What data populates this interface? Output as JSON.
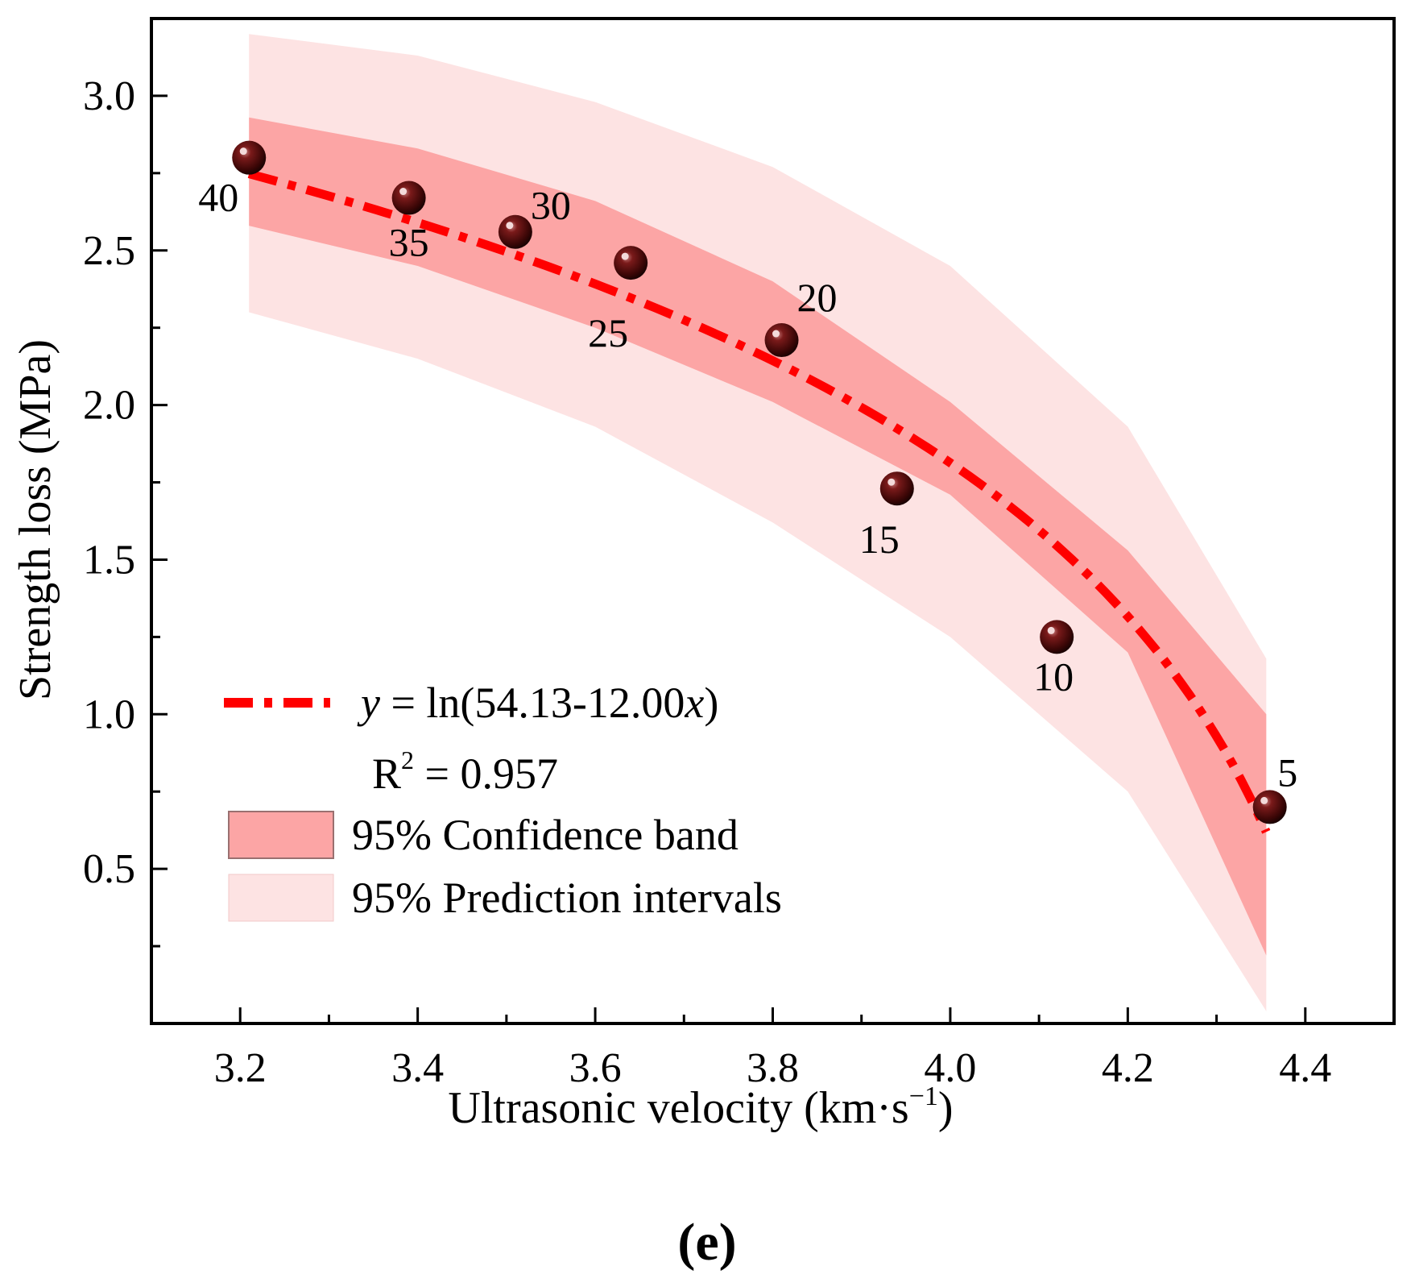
{
  "chart_data": {
    "type": "scatter",
    "x": [
      3.21,
      3.39,
      3.51,
      3.64,
      3.81,
      3.94,
      4.12,
      4.36
    ],
    "y": [
      2.8,
      2.67,
      2.56,
      2.46,
      2.21,
      1.73,
      1.25,
      0.7
    ],
    "point_labels": [
      "40",
      "35",
      "30",
      "25",
      "20",
      "15",
      "10",
      "5"
    ],
    "fit": {
      "name": "y = ln(54.13-12.00x)",
      "equation_y": "y",
      "equation_mid": " = ln(54.13-12.00",
      "equation_x": "x",
      "equation_end": ")",
      "a": 54.13,
      "b": 12.0,
      "x_range": [
        3.21,
        4.356
      ],
      "r2_prefix": "R",
      "r2_sup": "2",
      "r2_value": " = 0.957"
    },
    "confidence_band": {
      "name": "95% Confidence band",
      "x": [
        3.21,
        3.4,
        3.6,
        3.8,
        4.0,
        4.2,
        4.356
      ],
      "lower": [
        2.58,
        2.45,
        2.25,
        2.01,
        1.71,
        1.2,
        0.22
      ],
      "upper": [
        2.93,
        2.83,
        2.66,
        2.4,
        2.01,
        1.53,
        1.0
      ]
    },
    "prediction_band": {
      "name": "95% Prediction intervals",
      "x": [
        3.21,
        3.4,
        3.6,
        3.8,
        4.0,
        4.2,
        4.356
      ],
      "lower": [
        2.3,
        2.15,
        1.93,
        1.62,
        1.25,
        0.75,
        0.04
      ],
      "upper": [
        3.2,
        3.13,
        2.98,
        2.77,
        2.45,
        1.93,
        1.18
      ]
    },
    "title": "",
    "xlabel": "Ultrasonic velocity (km·s",
    "xlabel_sup": "−1",
    "xlabel_end": ")",
    "ylabel": "Strength loss (MPa)",
    "xlim": [
      3.1,
      4.5
    ],
    "ylim": [
      0.0,
      3.25
    ],
    "xticks": [
      "3.2",
      "3.4",
      "3.6",
      "3.8",
      "4.0",
      "4.2",
      "4.4"
    ],
    "yticks": [
      "0.5",
      "1.0",
      "1.5",
      "2.0",
      "2.5",
      "3.0"
    ],
    "legend_position": "bottom-left",
    "grid": false,
    "colors": {
      "fit_line": "#ff0000",
      "confidence": "#fca5a5",
      "prediction": "#fde3e3",
      "marker": "#5a0a0a"
    }
  },
  "panel_label": "(e)"
}
